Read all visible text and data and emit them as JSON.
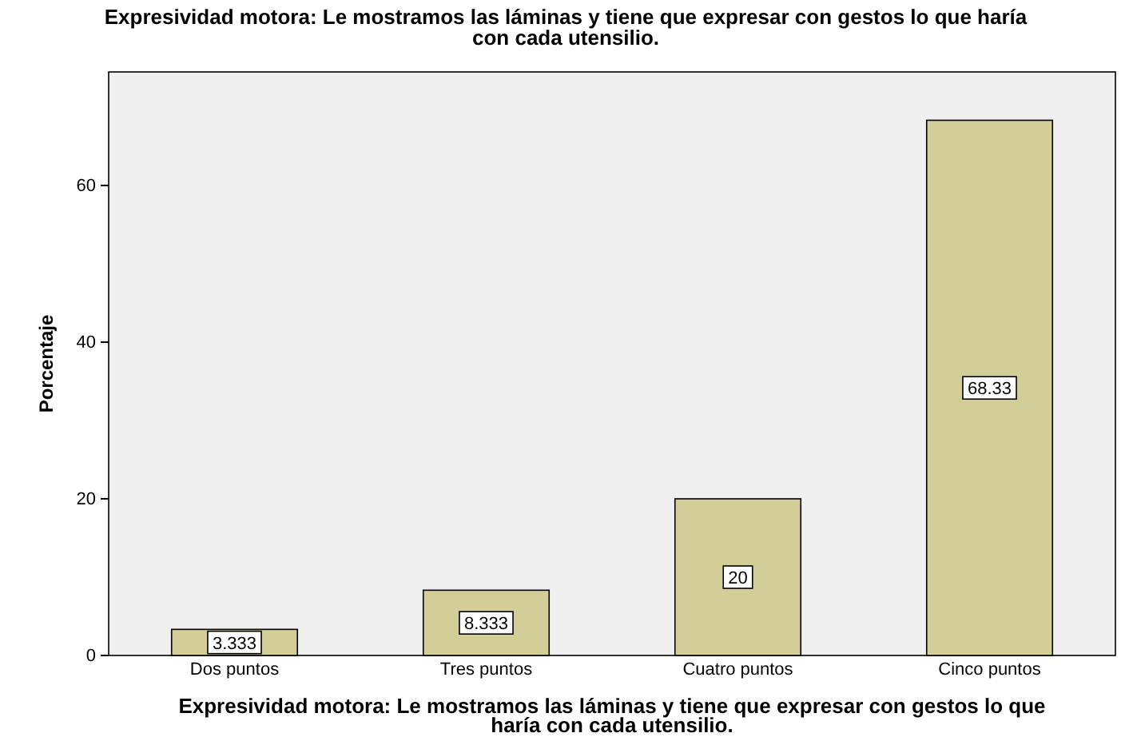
{
  "chart_data": {
    "type": "bar",
    "title": "Expresividad motora: Le mostramos las láminas y tiene que expresar con gestos lo que haría con cada utensilio.",
    "xlabel": "Expresividad motora: Le mostramos las láminas y tiene que expresar con gestos lo que haría con cada utensilio.",
    "ylabel": "Porcentaje",
    "categories": [
      "Dos puntos",
      "Tres puntos",
      "Cuatro puntos",
      "Cinco puntos"
    ],
    "values": [
      3.333,
      8.333,
      20,
      68.33
    ],
    "color": "#d3ce97",
    "ylim": [
      0,
      74.5
    ],
    "yticks": [
      0,
      20,
      40,
      60
    ],
    "grid": false,
    "data_labels": true
  }
}
